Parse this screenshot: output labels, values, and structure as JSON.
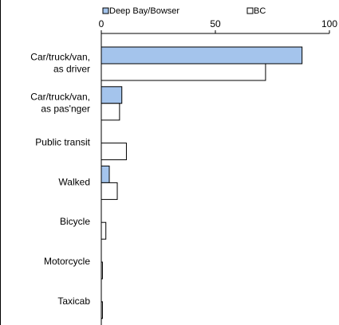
{
  "chart_data": {
    "type": "hbar",
    "categories": [
      "Car/truck/van,\nas driver",
      "Car/truck/van,\nas pas'nger",
      "Public transit",
      "Walked",
      "Bicycle",
      "Motorcycle",
      "Taxicab"
    ],
    "series": [
      {
        "name": "Deep Bay/Bowser",
        "color": "#a4c4ec",
        "values": [
          88,
          9,
          0,
          3.5,
          0,
          0,
          0
        ]
      },
      {
        "name": "BC",
        "color": "#ffffff",
        "values": [
          72,
          8,
          11,
          7,
          2,
          0.5,
          0.5
        ]
      }
    ],
    "xlim": [
      0,
      100
    ],
    "xticks": [
      0,
      50,
      100
    ],
    "legend": "top"
  }
}
